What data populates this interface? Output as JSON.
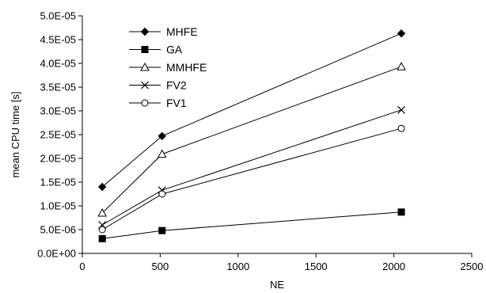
{
  "chart_data": {
    "type": "line",
    "title": "",
    "xlabel": "NE",
    "ylabel": "mean CPU time [s]",
    "xlim": [
      0,
      2500
    ],
    "ylim": [
      0,
      5e-05
    ],
    "x_ticks": [
      0,
      500,
      1000,
      1500,
      2000,
      2500
    ],
    "x_tick_labels": [
      "0",
      "500",
      "1000",
      "1500",
      "2000",
      "2500"
    ],
    "y_ticks": [
      0,
      5e-06,
      1e-05,
      1.5e-05,
      2e-05,
      2.5e-05,
      3e-05,
      3.5e-05,
      4e-05,
      4.5e-05,
      5e-05
    ],
    "y_tick_labels": [
      "0.0E+00",
      "5.0E-06",
      "1.0E-05",
      "1.5E-05",
      "2.0E-05",
      "2.5E-05",
      "3.0E-05",
      "3.5E-05",
      "4.0E-05",
      "4.5E-05",
      "5.0E-05"
    ],
    "grid": false,
    "legend_position": "top-left",
    "x": [
      128,
      512,
      2048
    ],
    "series": [
      {
        "name": "MHFE",
        "marker": "diamond-filled",
        "values": [
          1.4e-05,
          2.47e-05,
          4.63e-05
        ]
      },
      {
        "name": "GA",
        "marker": "square-filled",
        "values": [
          3.1e-06,
          4.8e-06,
          8.7e-06
        ]
      },
      {
        "name": "MMHFE",
        "marker": "triangle-open",
        "values": [
          8.5e-06,
          2.09e-05,
          3.93e-05
        ]
      },
      {
        "name": "FV2",
        "marker": "x",
        "values": [
          6e-06,
          1.33e-05,
          3.02e-05
        ]
      },
      {
        "name": "FV1",
        "marker": "circle-open",
        "values": [
          5e-06,
          1.25e-05,
          2.63e-05
        ]
      }
    ],
    "line_color": "#000000"
  }
}
